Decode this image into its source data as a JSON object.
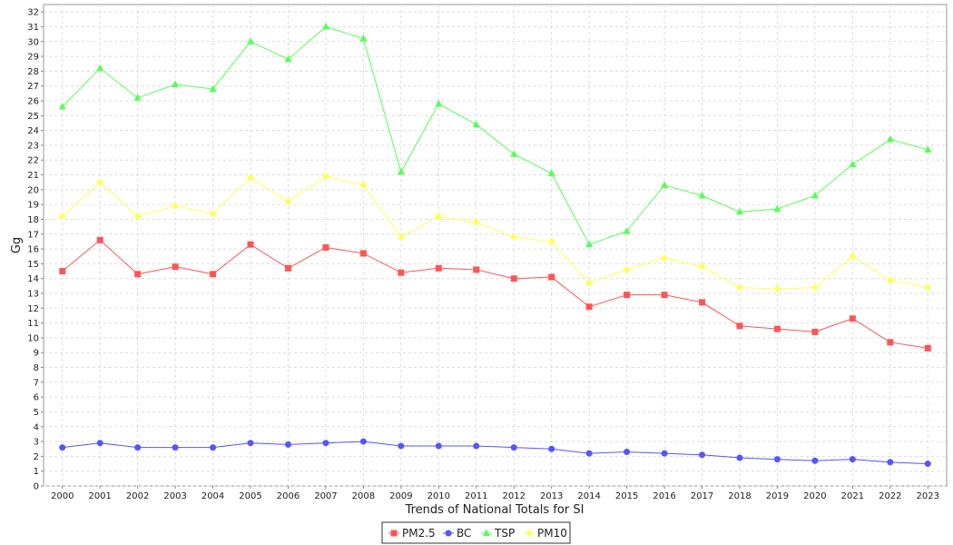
{
  "chart_data": {
    "type": "line",
    "title": "",
    "xlabel": "Trends of National Totals for SI",
    "ylabel": "Gg",
    "ylim": [
      0,
      32.5
    ],
    "y_ticks": [
      0,
      1,
      2,
      3,
      4,
      5,
      6,
      7,
      8,
      9,
      10,
      11,
      12,
      13,
      14,
      15,
      16,
      17,
      18,
      19,
      20,
      21,
      22,
      23,
      24,
      25,
      26,
      27,
      28,
      29,
      30,
      31,
      32
    ],
    "grid": true,
    "legend_position": "bottom",
    "categories": [
      "2000",
      "2001",
      "2002",
      "2003",
      "2004",
      "2005",
      "2006",
      "2007",
      "2008",
      "2009",
      "2010",
      "2011",
      "2012",
      "2013",
      "2014",
      "2015",
      "2016",
      "2017",
      "2018",
      "2019",
      "2020",
      "2021",
      "2022",
      "2023"
    ],
    "series": [
      {
        "name": "PM2.5",
        "color": "#ff5555",
        "marker": "square",
        "values": [
          14.5,
          16.6,
          14.3,
          14.8,
          14.3,
          16.3,
          14.7,
          16.1,
          15.7,
          14.4,
          14.7,
          14.6,
          14.0,
          14.1,
          12.1,
          12.9,
          12.9,
          12.4,
          10.8,
          10.6,
          10.4,
          11.3,
          9.7,
          9.3
        ]
      },
      {
        "name": "BC",
        "color": "#5555ff",
        "marker": "circle",
        "values": [
          2.6,
          2.9,
          2.6,
          2.6,
          2.6,
          2.9,
          2.8,
          2.9,
          3.0,
          2.7,
          2.7,
          2.7,
          2.6,
          2.5,
          2.2,
          2.3,
          2.2,
          2.1,
          1.9,
          1.8,
          1.7,
          1.8,
          1.6,
          1.5
        ]
      },
      {
        "name": "TSP",
        "color": "#55ff55",
        "marker": "triangle",
        "values": [
          25.6,
          28.2,
          26.2,
          27.1,
          26.8,
          30.0,
          28.8,
          31.0,
          30.2,
          21.2,
          25.8,
          24.4,
          22.4,
          21.1,
          16.3,
          17.2,
          20.3,
          19.6,
          18.5,
          18.7,
          19.6,
          21.7,
          23.4,
          22.7
        ]
      },
      {
        "name": "PM10",
        "color": "#ffff55",
        "marker": "diamond",
        "values": [
          18.2,
          20.5,
          18.2,
          18.9,
          18.4,
          20.8,
          19.2,
          20.9,
          20.3,
          16.8,
          18.2,
          17.8,
          16.8,
          16.5,
          13.7,
          14.6,
          15.4,
          14.8,
          13.4,
          13.3,
          13.4,
          15.5,
          13.9,
          13.4
        ]
      }
    ]
  }
}
